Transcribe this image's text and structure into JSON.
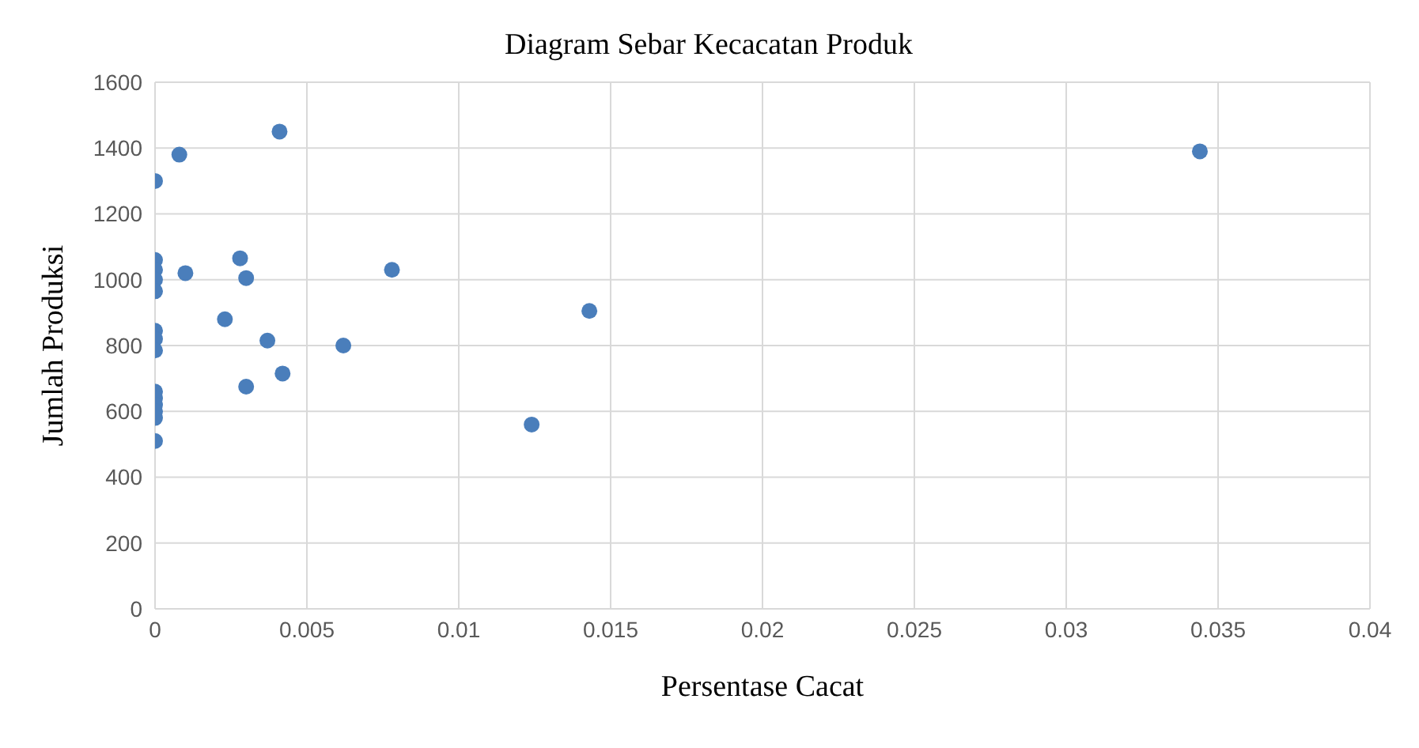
{
  "chart_data": {
    "type": "scatter",
    "title": "Diagram Sebar Kecacatan Produk",
    "xlabel": "Persentase Cacat",
    "ylabel": "Jumlah Produksi",
    "x": [
      0,
      0.0008,
      0.0041,
      0,
      0,
      0,
      0,
      0.001,
      0.0028,
      0.003,
      0.0023,
      0.0037,
      0.0042,
      0.003,
      0.0062,
      0.0078,
      0.0124,
      0.0143,
      0.0344,
      0,
      0,
      0,
      0,
      0,
      0,
      0,
      0,
      0
    ],
    "series": [
      {
        "color": "#4a7ebb",
        "values": [
          1300,
          1380,
          1450,
          1060,
          1030,
          1000,
          965,
          1020,
          1065,
          1005,
          880,
          815,
          715,
          675,
          800,
          1030,
          560,
          905,
          1390,
          845,
          820,
          785,
          660,
          640,
          620,
          600,
          580,
          510
        ]
      }
    ],
    "xlim": [
      0,
      0.04
    ],
    "xticks": [
      0,
      0.005,
      0.01,
      0.015,
      0.02,
      0.025,
      0.03,
      0.035,
      0.04
    ],
    "ylim": [
      0,
      1600
    ],
    "yticks": [
      0,
      200,
      400,
      600,
      800,
      1000,
      1200,
      1400,
      1600
    ],
    "grid": true,
    "marker": "circle",
    "legend": false
  }
}
